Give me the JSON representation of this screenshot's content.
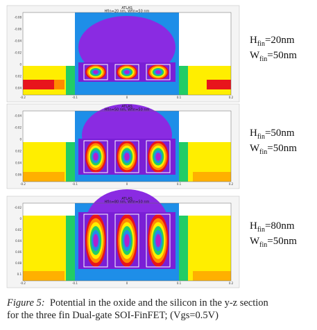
{
  "figures": [
    {
      "title": "ATLAS",
      "subtitle": "Hfin=20 nm, Wfin=50 nm",
      "yticks": [
        "-0.08",
        "-0.06",
        "-0.04",
        "-0.02",
        "0",
        "0.02",
        "0.04"
      ],
      "xticks": [
        "-0.2",
        "-0.1",
        "0",
        "0.1",
        "0.2"
      ],
      "h_label": {
        "symbol": "H",
        "sub": "fin",
        "value": "=20nm"
      },
      "w_label": {
        "symbol": "W",
        "sub": "fin",
        "value": "=50nm"
      }
    },
    {
      "title": "ATLAS",
      "subtitle": "Hfin=50 nm, Wfin=50 nm",
      "yticks": [
        "-0.04",
        "-0.02",
        "0",
        "0.02",
        "0.04",
        "0.06"
      ],
      "xticks": [
        "-0.2",
        "-0.1",
        "0",
        "0.1",
        "0.2"
      ],
      "h_label": {
        "symbol": "H",
        "sub": "fin",
        "value": "=50nm"
      },
      "w_label": {
        "symbol": "W",
        "sub": "fin",
        "value": "=50nm"
      }
    },
    {
      "title": "ATLAS",
      "subtitle": "Hfin=80 nm, Wfin=50 nm",
      "yticks": [
        "-0.02",
        "0",
        "0.02",
        "0.04",
        "0.06",
        "0.08",
        "0.1"
      ],
      "xticks": [
        "-0.2",
        "-0.1",
        "0",
        "0.1",
        "0.2"
      ],
      "h_label": {
        "symbol": "H",
        "sub": "fin",
        "value": "=80nm"
      },
      "w_label": {
        "symbol": "W",
        "sub": "fin",
        "value": "=50nm"
      }
    }
  ],
  "caption": {
    "label": "Figure 5:",
    "lines": [
      "Potential in the oxide and the silicon in the y-z section",
      "for the three fin Dual-gate SOI-FinFET; (Vgs=0.5V)"
    ]
  }
}
